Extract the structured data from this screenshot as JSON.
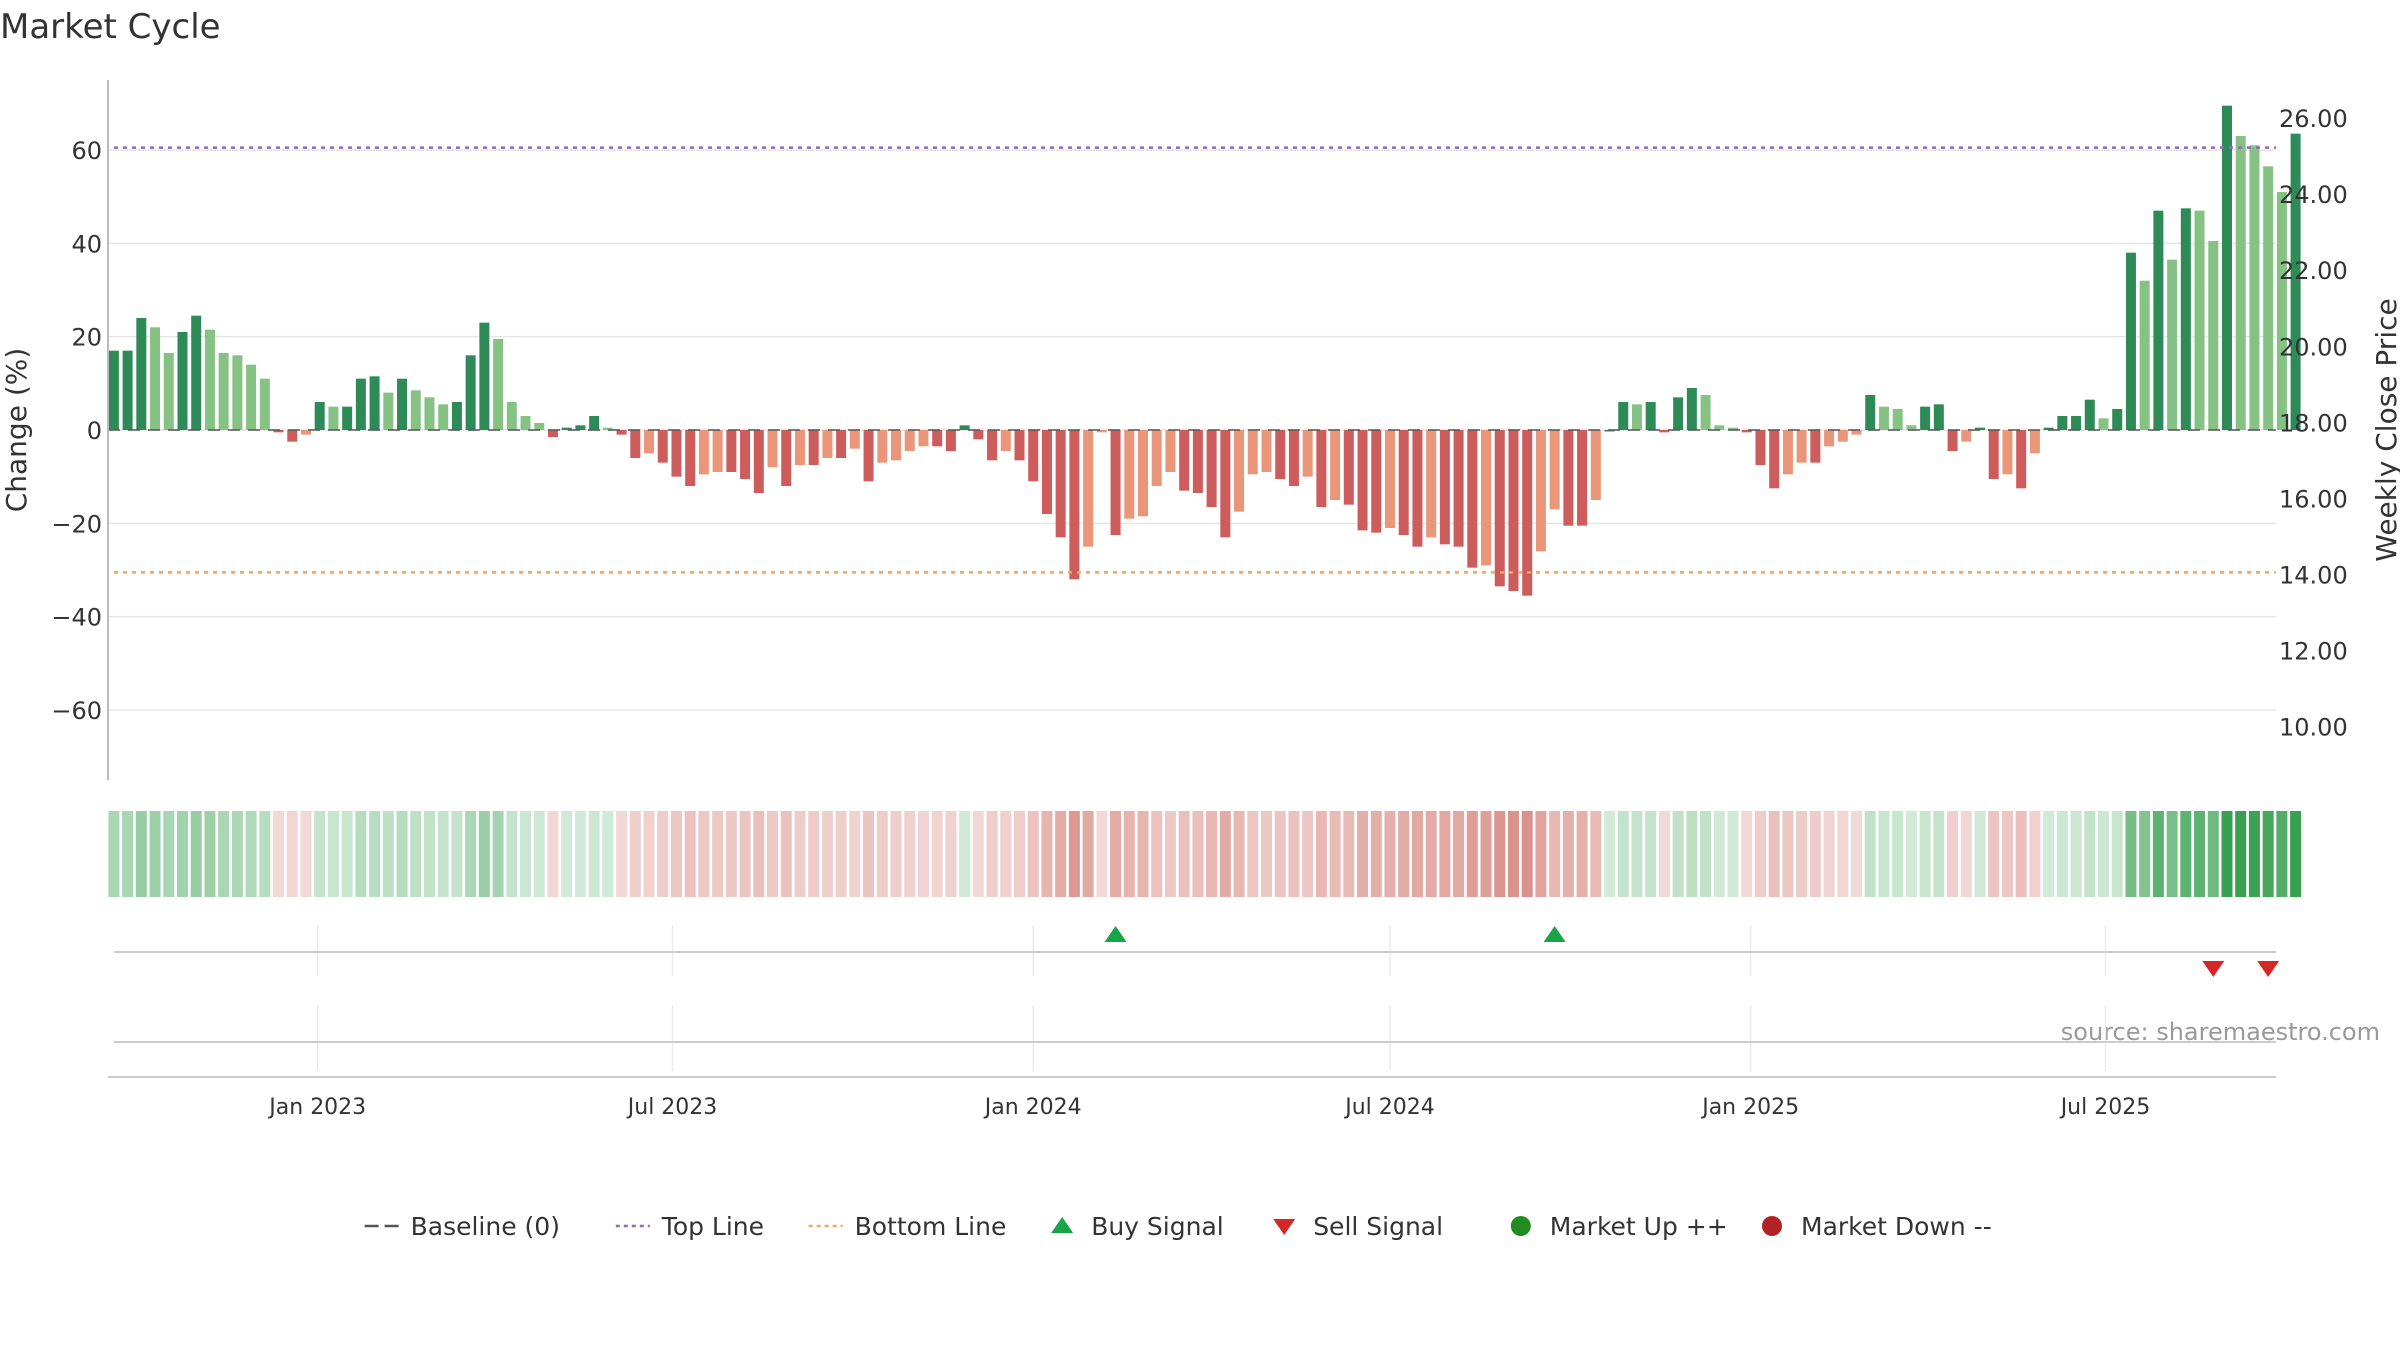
{
  "chart_data": {
    "type": "bar",
    "title": "Market Cycle",
    "ylabel": "Change (%)",
    "y2label": "Weekly Close Price",
    "source": "source: sharemaestro.com",
    "ylim": [
      -75,
      75
    ],
    "y2lim": [
      8.6,
      27.0
    ],
    "yticks": [
      {
        "value": 60,
        "label": "60"
      },
      {
        "value": 40,
        "label": "40"
      },
      {
        "value": 20,
        "label": "20"
      },
      {
        "value": 0,
        "label": "0"
      },
      {
        "value": -20,
        "label": "−20"
      },
      {
        "value": -40,
        "label": "−40"
      },
      {
        "value": -60,
        "label": "−60"
      }
    ],
    "y2ticks": [
      {
        "value": 26,
        "label": "26.00"
      },
      {
        "value": 24,
        "label": "24.00"
      },
      {
        "value": 22,
        "label": "22.00"
      },
      {
        "value": 20,
        "label": "20.00"
      },
      {
        "value": 18,
        "label": "18.00"
      },
      {
        "value": 16,
        "label": "16.00"
      },
      {
        "value": 14,
        "label": "14.00"
      },
      {
        "value": 12,
        "label": "12.00"
      },
      {
        "value": 10,
        "label": "10.00"
      }
    ],
    "x_start": "2022-09-16",
    "x_end": "2025-09-26",
    "x_ticks": [
      {
        "date": "2023-01-01",
        "label": "Jan 2023"
      },
      {
        "date": "2023-07-01",
        "label": "Jul 2023"
      },
      {
        "date": "2024-01-01",
        "label": "Jan 2024"
      },
      {
        "date": "2024-07-01",
        "label": "Jul 2024"
      },
      {
        "date": "2025-01-01",
        "label": "Jan 2025"
      },
      {
        "date": "2025-07-01",
        "label": "Jul 2025"
      }
    ],
    "first_week": "2022-09-19",
    "values": [
      17,
      17,
      24,
      22,
      16.5,
      21,
      24.5,
      21.5,
      16.5,
      16,
      14,
      11,
      -0.5,
      -2.5,
      -1,
      6,
      5,
      5,
      11,
      11.5,
      8,
      11,
      8.5,
      7,
      5.5,
      6,
      16,
      23,
      19.5,
      6,
      3,
      1.5,
      -1.5,
      0.5,
      1,
      3,
      0.5,
      -1,
      -6,
      -5,
      -7,
      -10,
      -12,
      -9.5,
      -9,
      -9,
      -10.5,
      -13.5,
      -8,
      -12,
      -7.5,
      -7.5,
      -6,
      -6,
      -4,
      -11,
      -7,
      -6.5,
      -4.5,
      -3.5,
      -3.5,
      -4.5,
      1,
      -2,
      -6.5,
      -4.5,
      -6.5,
      -11,
      -18,
      -23,
      -32,
      -25,
      -0.5,
      -22.5,
      -19,
      -18.5,
      -12,
      -9,
      -13,
      -13.5,
      -16.5,
      -23,
      -17.5,
      -9.5,
      -9,
      -10.5,
      -12,
      -10,
      -16.5,
      -15,
      -16,
      -21.5,
      -22,
      -21,
      -22.5,
      -25,
      -23,
      -24.5,
      -25,
      -29.5,
      -29,
      -33.5,
      -34.5,
      -35.5,
      -26,
      -17,
      -20.5,
      -20.5,
      -15,
      0,
      6,
      5.5,
      6,
      -0.5,
      7,
      9,
      7.5,
      1,
      0.5,
      -0.5,
      -7.5,
      -12.5,
      -9.5,
      -7,
      -7,
      -3.5,
      -2.5,
      -1,
      7.5,
      5,
      4.5,
      1,
      5,
      5.5,
      -4.5,
      -2.5,
      0.5,
      -10.5,
      -9.5,
      -12.5,
      -5,
      0.5,
      3,
      3,
      6.5,
      2.5,
      4.5,
      38,
      32,
      47,
      36.5,
      47.5,
      47,
      40.5,
      69.5,
      63,
      61,
      56.5,
      51,
      63.5
    ],
    "top_line": 60.5,
    "bottom_line": -30.5,
    "buy_signals": [
      "2024-02-12",
      "2024-09-23"
    ],
    "sell_signals": [
      "2025-08-25",
      "2025-09-22"
    ],
    "colors": {
      "up_strong": "#2e8b57",
      "up_weak": "#86c283",
      "down_strong": "#cd5c5c",
      "down_weak": "#e9967a",
      "top_line": "#9467bd",
      "bottom_line": "#f4a460",
      "buy": "#1aa44a",
      "sell": "#d62728",
      "market_up": "#228b22",
      "market_down": "#b22222",
      "baseline": "#555555"
    },
    "legend": [
      {
        "label": "Baseline (0)",
        "icon": "dash-line",
        "color": "#555555"
      },
      {
        "label": "Top Line",
        "icon": "dotted-line",
        "color": "#9467bd"
      },
      {
        "label": "Bottom Line",
        "icon": "dotted-line",
        "color": "#f4a460"
      },
      {
        "label": "Buy Signal",
        "icon": "triangle-up",
        "color": "#1aa44a"
      },
      {
        "label": "Sell Signal",
        "icon": "triangle-down",
        "color": "#d62728"
      },
      {
        "label": "Market Up ++",
        "icon": "circle",
        "color": "#228b22"
      },
      {
        "label": "Market Down --",
        "icon": "circle",
        "color": "#b22222"
      }
    ],
    "legend_position": "bottom-center",
    "grid": true
  }
}
